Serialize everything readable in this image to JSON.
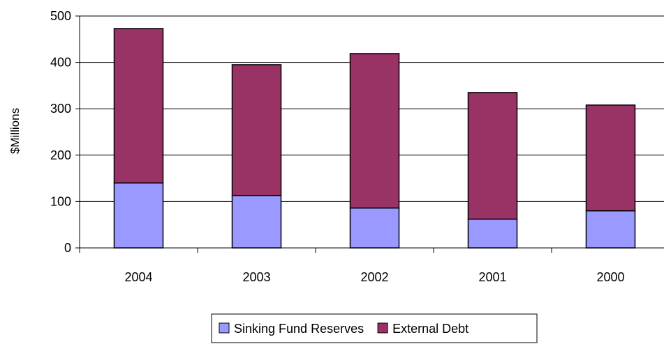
{
  "chart_data": {
    "type": "bar",
    "stacked": true,
    "categories": [
      "2004",
      "2003",
      "2002",
      "2001",
      "2000"
    ],
    "series": [
      {
        "name": "Sinking Fund Reserves",
        "values": [
          140,
          113,
          86,
          62,
          80
        ],
        "color": "#9999ff"
      },
      {
        "name": "External Debt",
        "values": [
          333,
          282,
          333,
          273,
          228
        ],
        "color": "#993366"
      }
    ],
    "ylabel": "$Millions",
    "xlabel": "",
    "title": "",
    "ylim": [
      0,
      500
    ],
    "yticks": [
      0,
      100,
      200,
      300,
      400,
      500
    ],
    "grid": true,
    "legend_position": "bottom"
  }
}
